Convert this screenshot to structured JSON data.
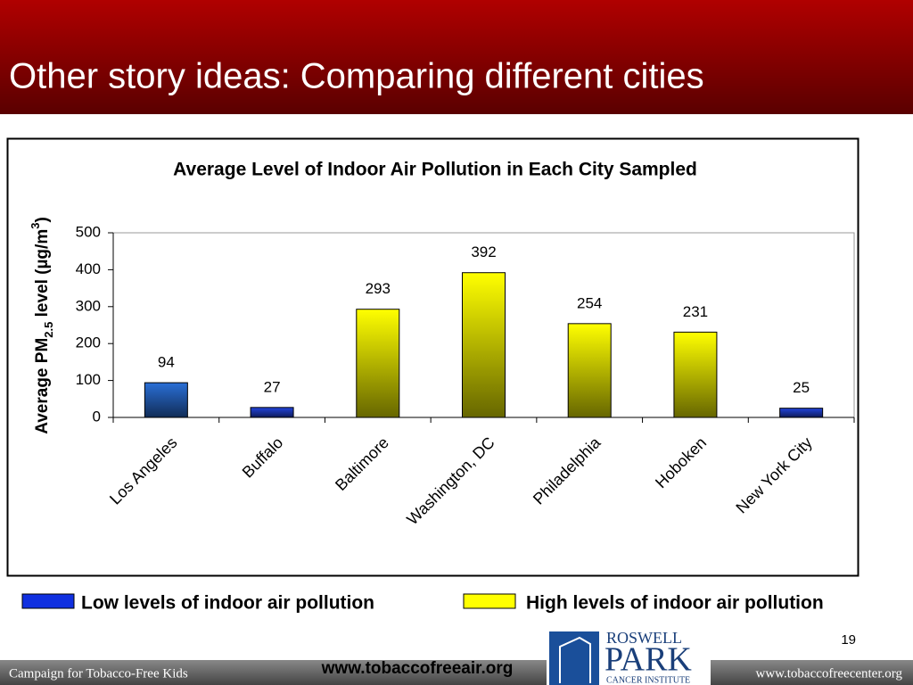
{
  "slide_title": "Other story ideas: Comparing different cities",
  "chart_data": {
    "type": "bar",
    "title": "Average Level of Indoor Air Pollution in Each City Sampled",
    "ylabel": [
      "Average PM",
      "2.5",
      " level (µg/m",
      "3",
      ")"
    ],
    "categories": [
      "Los Angeles",
      "Buffalo",
      "Baltimore",
      "Washington, DC",
      "Philadelphia",
      "Hoboken",
      "New York City"
    ],
    "values": [
      94,
      27,
      293,
      392,
      254,
      231,
      25
    ],
    "bar_colors": [
      "#2a6fd6",
      "#2244dd",
      "#ffff00",
      "#ffff00",
      "#ffff00",
      "#ffff00",
      "#2244dd"
    ],
    "ylim": [
      0,
      500
    ],
    "yticks": [
      0,
      100,
      200,
      300,
      400,
      500
    ],
    "grid": false
  },
  "legend": [
    {
      "label": "Low levels of indoor air pollution",
      "color": "#1030e0"
    },
    {
      "label": "High levels of indoor air pollution",
      "color": "#ffff00"
    }
  ],
  "page_number": "19",
  "footer": {
    "left": "Campaign for Tobacco-Free Kids",
    "center": "www.tobaccofreeair.org",
    "right": "www.tobaccofreecenter.org",
    "logo": [
      "ROSWELL",
      "PARK",
      "CANCER INSTITUTE"
    ]
  }
}
